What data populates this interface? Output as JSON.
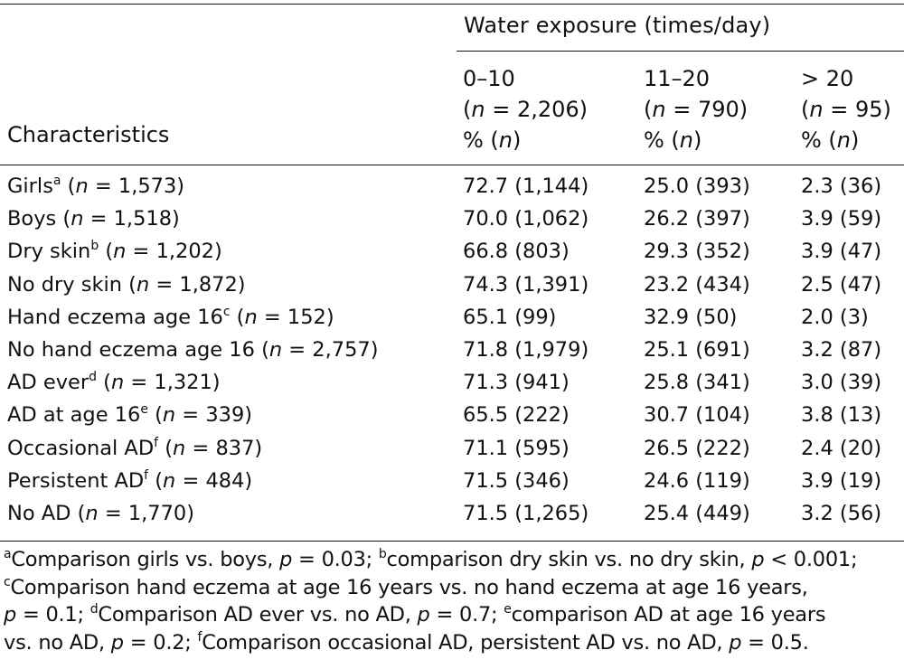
{
  "table": {
    "spanner": "Water exposure (times/day)",
    "characteristics_header": "Characteristics",
    "columns": [
      {
        "range": "0–10",
        "n_prefix": "(",
        "n_symbol": "n",
        "n_value": " = 2,206)",
        "unit_prefix": "% (",
        "unit_symbol": "n",
        "unit_suffix": ")"
      },
      {
        "range": "11–20",
        "n_prefix": "(",
        "n_symbol": "n",
        "n_value": " = 790)",
        "unit_prefix": "% (",
        "unit_symbol": "n",
        "unit_suffix": ")"
      },
      {
        "range": "> 20",
        "n_prefix": "(",
        "n_symbol": "n",
        "n_value": " = 95)",
        "unit_prefix": "% (",
        "unit_symbol": "n",
        "unit_suffix": ")"
      }
    ],
    "rows": [
      {
        "label": "Girls",
        "sup": "a",
        "n": " = 1,573)",
        "v0": "72.7 (1,144)",
        "v1": "25.0 (393)",
        "v2": "2.3 (36)"
      },
      {
        "label": "Boys",
        "sup": "",
        "n": " = 1,518)",
        "v0": "70.0 (1,062)",
        "v1": "26.2 (397)",
        "v2": "3.9 (59)"
      },
      {
        "label": "Dry skin",
        "sup": "b",
        "n": " = 1,202)",
        "v0": "66.8 (803)",
        "v1": "29.3 (352)",
        "v2": "3.9 (47)"
      },
      {
        "label": "No dry skin",
        "sup": "",
        "n": " = 1,872)",
        "v0": "74.3 (1,391)",
        "v1": "23.2 (434)",
        "v2": "2.5 (47)"
      },
      {
        "label": "Hand eczema age 16",
        "sup": "c",
        "n": " = 152)",
        "v0": "65.1 (99)",
        "v1": "32.9 (50)",
        "v2": "2.0 (3)"
      },
      {
        "label": "No hand eczema age 16",
        "sup": "",
        "n": " = 2,757)",
        "v0": "71.8 (1,979)",
        "v1": "25.1 (691)",
        "v2": "3.2 (87)"
      },
      {
        "label": "AD ever",
        "sup": "d",
        "n": " = 1,321)",
        "v0": "71.3 (941)",
        "v1": "25.8 (341)",
        "v2": "3.0 (39)"
      },
      {
        "label": "AD at age 16",
        "sup": "e",
        "n": " = 339)",
        "v0": "65.5 (222)",
        "v1": "30.7 (104)",
        "v2": "3.8 (13)"
      },
      {
        "label": "Occasional AD",
        "sup": "f",
        "n": " = 837)",
        "v0": "71.1 (595)",
        "v1": "26.5 (222)",
        "v2": "2.4 (20)"
      },
      {
        "label": "Persistent AD",
        "sup": "f",
        "n": " = 484)",
        "v0": "71.5 (346)",
        "v1": "24.6 (119)",
        "v2": "3.9 (19)"
      },
      {
        "label": "No AD",
        "sup": "",
        "n": " = 1,770)",
        "v0": "71.5 (1,265)",
        "v1": "25.4 (449)",
        "v2": "3.2 (56)"
      }
    ]
  },
  "footnote": {
    "a_mark": "a",
    "a_text": "Comparison girls vs. boys, ",
    "a_p": "p",
    "a_val": " = 0.03; ",
    "b_mark": "b",
    "b_text": "comparison dry skin vs. no dry skin, ",
    "b_p": "p",
    "b_val": " < 0.001;",
    "c_mark": "c",
    "c_text": "Comparison hand eczema at age 16 years vs. no hand eczema at age 16 years,",
    "c_p": "p",
    "c_val": " = 0.1; ",
    "d_mark": "d",
    "d_text": "Comparison AD ever vs. no AD, ",
    "d_p": "p",
    "d_val": " = 0.7; ",
    "e_mark": "e",
    "e_text": "comparison AD at age 16 years",
    "e_text2": "vs. no AD, ",
    "e_p": "p",
    "e_val": " = 0.2; ",
    "f_mark": "f",
    "f_text": "Comparison occasional AD, persistent AD vs. no AD, ",
    "f_p": "p",
    "f_val": " = 0.5."
  }
}
